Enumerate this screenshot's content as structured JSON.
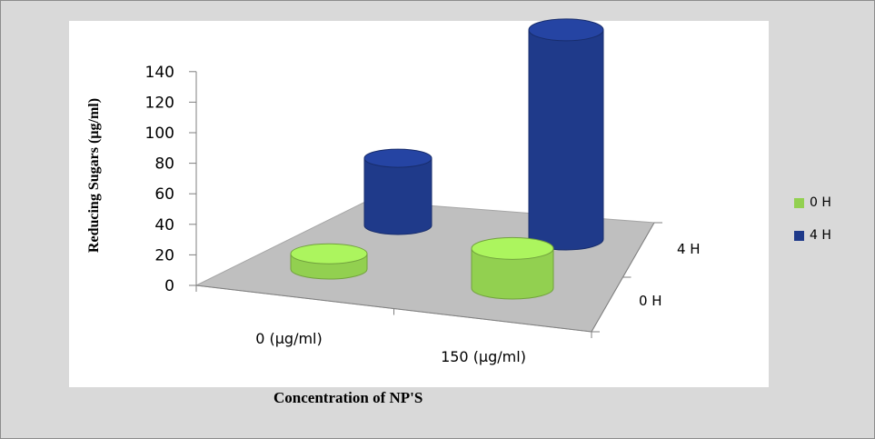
{
  "chart_data": {
    "type": "bar",
    "style": "3d-cylinder",
    "categories": [
      "0 (µg/ml)",
      "150 (µg/ml)"
    ],
    "series": [
      {
        "name": "0 H",
        "color": "#92d050",
        "values": [
          10,
          26
        ]
      },
      {
        "name": "4 H",
        "color": "#1f3a8a",
        "values": [
          44,
          137
        ]
      }
    ],
    "xlabel": "Concentration of NP'S",
    "ylabel": "Reducing Sugars (µg/ml)",
    "ylim": [
      0,
      140
    ],
    "yticks": [
      0,
      20,
      40,
      60,
      80,
      100,
      120,
      140
    ],
    "depth_labels": [
      "0 H",
      "4 H"
    ],
    "legend_position": "right",
    "grid": false
  }
}
